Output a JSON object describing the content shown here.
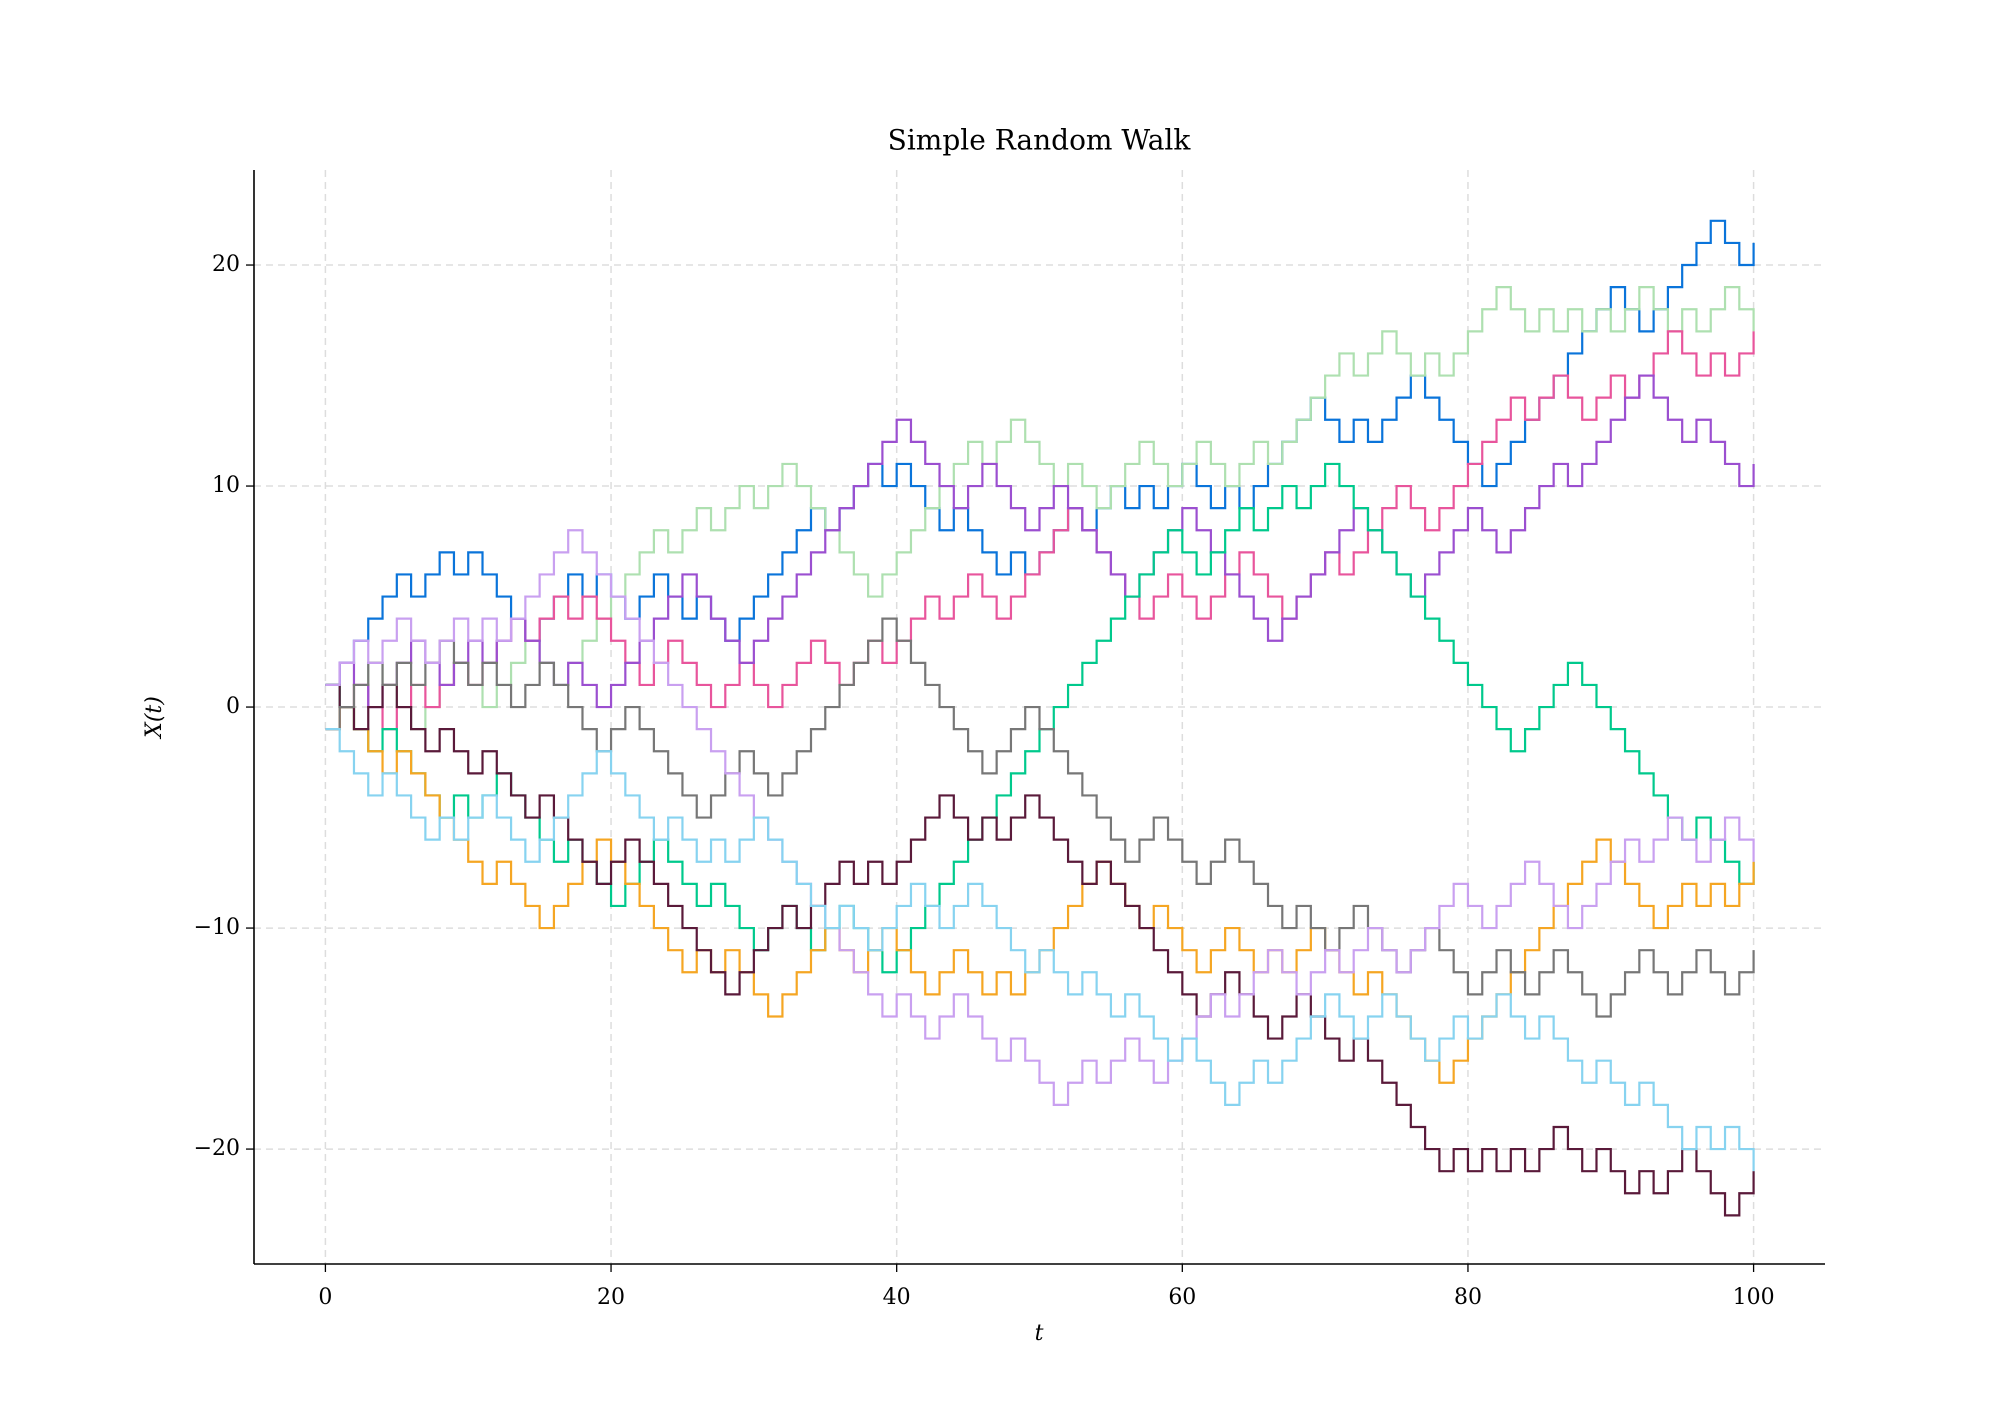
{
  "chart_data": {
    "type": "step",
    "title": "Simple Random Walk",
    "x_label": "t",
    "y_label": "X(t)",
    "x": [
      0,
      1,
      2,
      3,
      4,
      5,
      6,
      7,
      8,
      9,
      10,
      11,
      12,
      13,
      14,
      15,
      16,
      17,
      18,
      19,
      20,
      21,
      22,
      23,
      24,
      25,
      26,
      27,
      28,
      29,
      30,
      31,
      32,
      33,
      34,
      35,
      36,
      37,
      38,
      39,
      40,
      41,
      42,
      43,
      44,
      45,
      46,
      47,
      48,
      49,
      50,
      51,
      52,
      53,
      54,
      55,
      56,
      57,
      58,
      59,
      60,
      61,
      62,
      63,
      64,
      65,
      66,
      67,
      68,
      69,
      70,
      71,
      72,
      73,
      74,
      75,
      76,
      77,
      78,
      79,
      80,
      81,
      82,
      83,
      84,
      85,
      86,
      87,
      88,
      89,
      90,
      91,
      92,
      93,
      94,
      95,
      96,
      97,
      98,
      99,
      100
    ],
    "xlim": [
      -5,
      105
    ],
    "ylim": [
      -25.2,
      24.3
    ],
    "xticks": [
      0,
      20,
      40,
      60,
      80,
      100
    ],
    "yticks": [
      {
        "value": -20,
        "label": "−20"
      },
      {
        "value": -10,
        "label": "−10"
      },
      0,
      10,
      20
    ],
    "grid": true,
    "series": [
      {
        "color": "#0a74da",
        "values": [
          1,
          2,
          3,
          4,
          5,
          6,
          5,
          6,
          7,
          6,
          7,
          6,
          5,
          4,
          3,
          4,
          5,
          6,
          5,
          6,
          5,
          4,
          5,
          6,
          5,
          4,
          5,
          4,
          3,
          4,
          5,
          6,
          7,
          8,
          9,
          8,
          9,
          10,
          11,
          10,
          11,
          10,
          9,
          8,
          9,
          8,
          7,
          6,
          7,
          6,
          7,
          8,
          9,
          8,
          9,
          10,
          9,
          10,
          9,
          10,
          11,
          10,
          9,
          10,
          9,
          10,
          11,
          12,
          13,
          14,
          13,
          12,
          13,
          12,
          13,
          14,
          15,
          14,
          13,
          12,
          11,
          10,
          11,
          12,
          13,
          14,
          15,
          16,
          17,
          18,
          19,
          18,
          17,
          18,
          19,
          20,
          21,
          22,
          21,
          20,
          21
        ]
      },
      {
        "color": "#aee0b0",
        "values": [
          1,
          0,
          1,
          2,
          1,
          0,
          -1,
          0,
          1,
          2,
          1,
          0,
          1,
          2,
          3,
          2,
          1,
          2,
          3,
          4,
          5,
          6,
          7,
          8,
          7,
          8,
          9,
          8,
          9,
          10,
          9,
          10,
          11,
          10,
          9,
          8,
          7,
          6,
          5,
          6,
          7,
          8,
          9,
          10,
          11,
          12,
          11,
          12,
          13,
          12,
          11,
          10,
          11,
          10,
          9,
          10,
          11,
          12,
          11,
          10,
          11,
          12,
          11,
          10,
          11,
          12,
          11,
          12,
          13,
          14,
          15,
          16,
          15,
          16,
          17,
          16,
          15,
          16,
          15,
          16,
          17,
          18,
          19,
          18,
          17,
          18,
          17,
          18,
          17,
          18,
          17,
          18,
          19,
          18,
          17,
          18,
          17,
          18,
          19,
          18,
          17
        ]
      },
      {
        "color": "#e8559c",
        "values": [
          -1,
          0,
          1,
          0,
          -1,
          0,
          1,
          0,
          1,
          2,
          1,
          2,
          3,
          4,
          3,
          4,
          5,
          4,
          5,
          4,
          3,
          2,
          1,
          2,
          3,
          2,
          1,
          0,
          1,
          2,
          1,
          0,
          1,
          2,
          3,
          2,
          1,
          2,
          3,
          2,
          3,
          4,
          5,
          4,
          5,
          6,
          5,
          4,
          5,
          6,
          7,
          8,
          9,
          8,
          7,
          6,
          5,
          4,
          5,
          6,
          5,
          4,
          5,
          6,
          7,
          6,
          5,
          4,
          5,
          6,
          7,
          6,
          7,
          8,
          9,
          10,
          9,
          8,
          9,
          10,
          11,
          12,
          13,
          14,
          13,
          14,
          15,
          14,
          13,
          14,
          15,
          14,
          15,
          16,
          17,
          16,
          15,
          16,
          15,
          16,
          17
        ]
      },
      {
        "color": "#9b4fd0",
        "values": [
          1,
          2,
          1,
          0,
          1,
          2,
          3,
          2,
          1,
          2,
          3,
          2,
          3,
          4,
          3,
          2,
          1,
          2,
          1,
          0,
          1,
          2,
          3,
          4,
          5,
          6,
          5,
          4,
          3,
          2,
          3,
          4,
          5,
          6,
          7,
          8,
          9,
          10,
          11,
          12,
          13,
          12,
          11,
          10,
          9,
          10,
          11,
          10,
          9,
          8,
          9,
          10,
          9,
          8,
          7,
          6,
          5,
          6,
          7,
          8,
          9,
          8,
          7,
          6,
          5,
          4,
          3,
          4,
          5,
          6,
          7,
          8,
          9,
          8,
          7,
          6,
          5,
          6,
          7,
          8,
          9,
          8,
          7,
          8,
          9,
          10,
          11,
          10,
          11,
          12,
          13,
          14,
          15,
          14,
          13,
          12,
          13,
          12,
          11,
          10,
          11
        ]
      },
      {
        "color": "#00c98c",
        "values": [
          1,
          0,
          -1,
          -2,
          -1,
          -2,
          -3,
          -4,
          -5,
          -4,
          -5,
          -4,
          -3,
          -4,
          -5,
          -6,
          -7,
          -6,
          -7,
          -8,
          -9,
          -8,
          -7,
          -6,
          -7,
          -8,
          -9,
          -8,
          -9,
          -10,
          -11,
          -10,
          -9,
          -10,
          -11,
          -10,
          -9,
          -10,
          -11,
          -12,
          -11,
          -10,
          -9,
          -8,
          -7,
          -6,
          -5,
          -4,
          -3,
          -2,
          -1,
          0,
          1,
          2,
          3,
          4,
          5,
          6,
          7,
          8,
          7,
          6,
          7,
          8,
          9,
          8,
          9,
          10,
          9,
          10,
          11,
          10,
          9,
          8,
          7,
          6,
          5,
          4,
          3,
          2,
          1,
          0,
          -1,
          -2,
          -1,
          0,
          1,
          2,
          1,
          0,
          -1,
          -2,
          -3,
          -4,
          -5,
          -6,
          -5,
          -6,
          -7,
          -8,
          -7
        ]
      },
      {
        "color": "#f5a623",
        "values": [
          -1,
          0,
          -1,
          -2,
          -3,
          -2,
          -3,
          -4,
          -5,
          -6,
          -7,
          -8,
          -7,
          -8,
          -9,
          -10,
          -9,
          -8,
          -7,
          -6,
          -7,
          -8,
          -9,
          -10,
          -11,
          -12,
          -11,
          -12,
          -11,
          -12,
          -13,
          -14,
          -13,
          -12,
          -11,
          -10,
          -11,
          -12,
          -11,
          -10,
          -11,
          -12,
          -13,
          -12,
          -11,
          -12,
          -13,
          -12,
          -13,
          -12,
          -11,
          -10,
          -9,
          -8,
          -7,
          -8,
          -9,
          -10,
          -9,
          -10,
          -11,
          -12,
          -11,
          -10,
          -11,
          -12,
          -11,
          -12,
          -11,
          -10,
          -11,
          -12,
          -13,
          -12,
          -13,
          -14,
          -15,
          -16,
          -17,
          -16,
          -15,
          -14,
          -13,
          -12,
          -11,
          -10,
          -9,
          -8,
          -7,
          -6,
          -7,
          -8,
          -9,
          -10,
          -9,
          -8,
          -9,
          -8,
          -9,
          -8,
          -7
        ]
      },
      {
        "color": "#5a1a3a",
        "values": [
          1,
          0,
          -1,
          0,
          1,
          0,
          -1,
          -2,
          -1,
          -2,
          -3,
          -2,
          -3,
          -4,
          -5,
          -4,
          -5,
          -6,
          -7,
          -8,
          -7,
          -6,
          -7,
          -8,
          -9,
          -10,
          -11,
          -12,
          -13,
          -12,
          -11,
          -10,
          -9,
          -10,
          -9,
          -8,
          -7,
          -8,
          -7,
          -8,
          -7,
          -6,
          -5,
          -4,
          -5,
          -6,
          -5,
          -6,
          -5,
          -4,
          -5,
          -6,
          -7,
          -8,
          -7,
          -8,
          -9,
          -10,
          -11,
          -12,
          -13,
          -14,
          -13,
          -12,
          -13,
          -14,
          -15,
          -14,
          -13,
          -14,
          -15,
          -16,
          -15,
          -16,
          -17,
          -18,
          -19,
          -20,
          -21,
          -20,
          -21,
          -20,
          -21,
          -20,
          -21,
          -20,
          -19,
          -20,
          -21,
          -20,
          -21,
          -22,
          -21,
          -22,
          -21,
          -20,
          -21,
          -22,
          -23,
          -22,
          -21
        ]
      },
      {
        "color": "#777777",
        "values": [
          -1,
          0,
          1,
          2,
          1,
          2,
          1,
          2,
          3,
          2,
          1,
          2,
          1,
          0,
          1,
          2,
          1,
          0,
          -1,
          -2,
          -1,
          0,
          -1,
          -2,
          -3,
          -4,
          -5,
          -4,
          -3,
          -2,
          -3,
          -4,
          -3,
          -2,
          -1,
          0,
          1,
          2,
          3,
          4,
          3,
          2,
          1,
          0,
          -1,
          -2,
          -3,
          -2,
          -1,
          0,
          -1,
          -2,
          -3,
          -4,
          -5,
          -6,
          -7,
          -6,
          -5,
          -6,
          -7,
          -8,
          -7,
          -6,
          -7,
          -8,
          -9,
          -10,
          -9,
          -10,
          -11,
          -10,
          -9,
          -10,
          -11,
          -12,
          -11,
          -10,
          -11,
          -12,
          -13,
          -12,
          -11,
          -12,
          -13,
          -12,
          -11,
          -12,
          -13,
          -14,
          -13,
          -12,
          -11,
          -12,
          -13,
          -12,
          -11,
          -12,
          -13,
          -12,
          -11
        ]
      },
      {
        "color": "#c9a0f0",
        "values": [
          1,
          2,
          3,
          2,
          3,
          4,
          3,
          2,
          3,
          4,
          3,
          4,
          3,
          4,
          5,
          6,
          7,
          8,
          7,
          6,
          5,
          4,
          3,
          2,
          1,
          0,
          -1,
          -2,
          -3,
          -4,
          -5,
          -6,
          -7,
          -8,
          -9,
          -10,
          -11,
          -12,
          -13,
          -14,
          -13,
          -14,
          -15,
          -14,
          -13,
          -14,
          -15,
          -16,
          -15,
          -16,
          -17,
          -18,
          -17,
          -16,
          -17,
          -16,
          -15,
          -16,
          -17,
          -16,
          -15,
          -14,
          -13,
          -14,
          -13,
          -12,
          -11,
          -12,
          -13,
          -12,
          -11,
          -12,
          -11,
          -10,
          -11,
          -12,
          -11,
          -10,
          -9,
          -8,
          -9,
          -10,
          -9,
          -8,
          -7,
          -8,
          -9,
          -10,
          -9,
          -8,
          -7,
          -6,
          -7,
          -6,
          -5,
          -6,
          -7,
          -6,
          -5,
          -6,
          -7
        ]
      },
      {
        "color": "#87d3f0",
        "values": [
          -1,
          -2,
          -3,
          -4,
          -3,
          -4,
          -5,
          -6,
          -5,
          -6,
          -5,
          -4,
          -5,
          -6,
          -7,
          -6,
          -5,
          -4,
          -3,
          -2,
          -3,
          -4,
          -5,
          -6,
          -5,
          -6,
          -7,
          -6,
          -7,
          -6,
          -5,
          -6,
          -7,
          -8,
          -9,
          -10,
          -9,
          -10,
          -11,
          -10,
          -9,
          -8,
          -9,
          -10,
          -9,
          -8,
          -9,
          -10,
          -11,
          -12,
          -11,
          -12,
          -13,
          -12,
          -13,
          -14,
          -13,
          -14,
          -15,
          -16,
          -15,
          -16,
          -17,
          -18,
          -17,
          -16,
          -17,
          -16,
          -15,
          -14,
          -13,
          -14,
          -15,
          -14,
          -13,
          -14,
          -15,
          -16,
          -15,
          -14,
          -15,
          -14,
          -13,
          -14,
          -15,
          -14,
          -15,
          -16,
          -17,
          -16,
          -17,
          -18,
          -17,
          -18,
          -19,
          -20,
          -19,
          -20,
          -19,
          -20,
          -21
        ]
      }
    ]
  }
}
